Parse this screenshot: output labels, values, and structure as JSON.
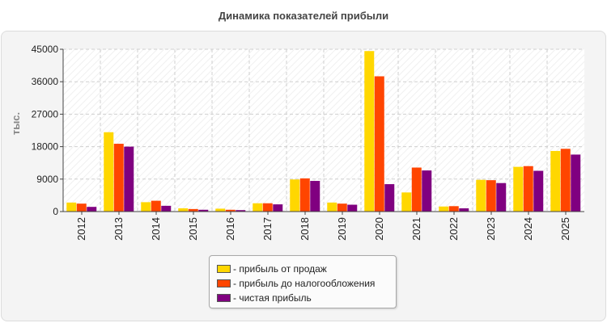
{
  "chart_data": {
    "type": "bar",
    "title": "Динамика показателей прибыли",
    "ylabel": "тыс.",
    "xlabel": "",
    "ylim": [
      0,
      45000
    ],
    "yticks": [
      "0",
      "9000",
      "18000",
      "27000",
      "36000",
      "45000"
    ],
    "categories": [
      "2012",
      "2013",
      "2014",
      "2015",
      "2016",
      "2017",
      "2018",
      "2019",
      "2020",
      "2021",
      "2022",
      "2023",
      "2024",
      "2025"
    ],
    "grid": true,
    "legend_position": "bottom",
    "series": [
      {
        "name": "- прибыль от продаж",
        "color": "#ffd700",
        "values": [
          2500,
          22000,
          2600,
          900,
          800,
          2300,
          8900,
          2500,
          44500,
          5300,
          1400,
          8800,
          12400,
          16800
        ]
      },
      {
        "name": "- прибыль до налогообложения",
        "color": "#ff4500",
        "values": [
          2200,
          18800,
          3000,
          700,
          500,
          2300,
          9200,
          2200,
          37500,
          12200,
          1500,
          8700,
          12600,
          17400
        ]
      },
      {
        "name": "- чистая прибыль",
        "color": "#800080",
        "values": [
          1300,
          18000,
          1600,
          500,
          400,
          2000,
          8500,
          1900,
          7600,
          11400,
          900,
          7900,
          11300,
          15800
        ]
      }
    ]
  }
}
